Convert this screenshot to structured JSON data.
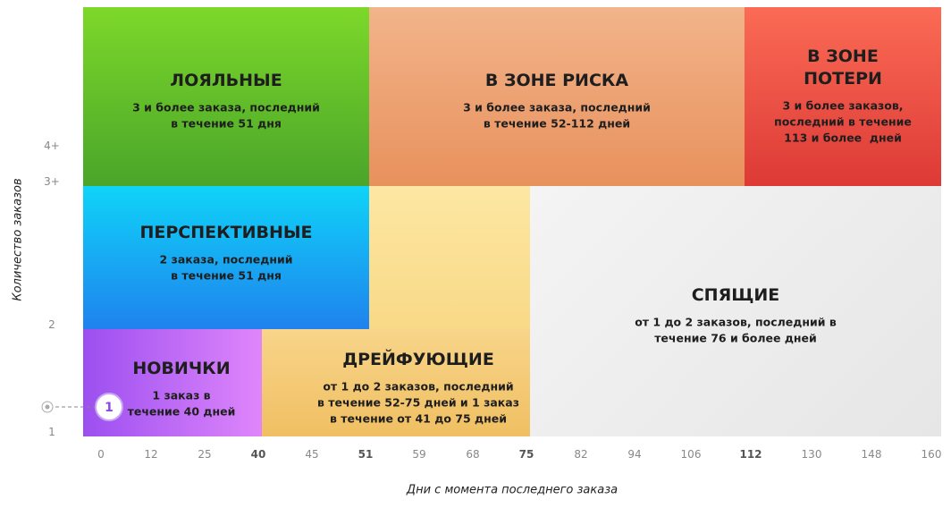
{
  "segments": [
    {
      "title_lines": [
        "ЛОЯЛЬНЫЕ"
      ],
      "lines": [
        "3 и более заказа, последний",
        "в течение 51 дня"
      ]
    },
    {
      "title_lines": [
        "В ЗОНЕ РИСКА"
      ],
      "lines": [
        "3 и более заказа, последний",
        "в течение 52-112 дней"
      ]
    },
    {
      "title_lines": [
        "В ЗОНЕ",
        "ПОТЕРИ"
      ],
      "lines": [
        "3 и более заказов,",
        "последний в течение",
        "113 и более  дней"
      ]
    },
    {
      "title_lines": [
        "ПЕРСПЕКТИВНЫЕ"
      ],
      "lines": [
        "2 заказа, последний",
        "в течение 51 дня"
      ]
    },
    {
      "title_lines": [
        "НОВИЧКИ"
      ],
      "lines": [
        "1 заказ в",
        "течение 40 дней"
      ]
    },
    {
      "title_lines": [
        "ДРЕЙФУЮЩИЕ"
      ],
      "lines": [
        "от 1 до 2 заказов, последний",
        "в течение 52-75 дней и 1 заказ",
        "в течение от 41 до 75 дней"
      ]
    },
    {
      "title_lines": [
        "СПЯЩИЕ"
      ],
      "lines": [
        "от 1 до 2 заказов, последний в",
        "течение 76 и более дней"
      ]
    }
  ],
  "marker": "1",
  "y_axis": {
    "title": "Количество заказов",
    "ticks": [
      "4+",
      "3+",
      "2",
      "1"
    ]
  },
  "x_axis": {
    "title": "Дни с момента последнего заказа",
    "ticks": [
      {
        "text": "0",
        "bold": false
      },
      {
        "text": "12",
        "bold": false
      },
      {
        "text": "25",
        "bold": false
      },
      {
        "text": "40",
        "bold": true
      },
      {
        "text": "45",
        "bold": false
      },
      {
        "text": "51",
        "bold": true
      },
      {
        "text": "59",
        "bold": false
      },
      {
        "text": "68",
        "bold": false
      },
      {
        "text": "75",
        "bold": true
      },
      {
        "text": "82",
        "bold": false
      },
      {
        "text": "94",
        "bold": false
      },
      {
        "text": "106",
        "bold": false
      },
      {
        "text": "112",
        "bold": true
      },
      {
        "text": "130",
        "bold": false
      },
      {
        "text": "148",
        "bold": false
      },
      {
        "text": "160",
        "bold": false
      }
    ]
  }
}
